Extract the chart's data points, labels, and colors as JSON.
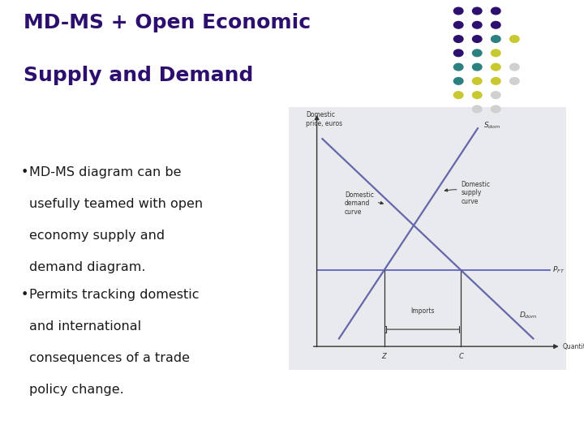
{
  "title_line1": "MD-MS + Open Economic",
  "title_line2": "Supply and Demand",
  "title_color": "#2d0f6e",
  "bullet1_line1": "MD-MS diagram can be",
  "bullet1_line2": "usefully teamed with open",
  "bullet1_line3": "economy supply and",
  "bullet1_line4": "demand diagram.",
  "bullet2_line1": "Permits tracking domestic",
  "bullet2_line2": "and international",
  "bullet2_line3": "consequences of a trade",
  "bullet2_line4": "policy change.",
  "bullet_color": "#1a1a1a",
  "bg_color": "#ffffff",
  "diagram_bg": "#e8eaee",
  "curve_color": "#6666aa",
  "axis_color": "#333333",
  "pft_line_color": "#5555bb",
  "dot_pattern": [
    [
      "#2d0f6e",
      "#2d0f6e",
      "#2d0f6e",
      null
    ],
    [
      "#2d0f6e",
      "#2d0f6e",
      "#2d0f6e",
      null
    ],
    [
      "#2d0f6e",
      "#2d0f6e",
      "#2d8080",
      "#c8c830"
    ],
    [
      "#2d0f6e",
      "#2d8080",
      "#c8c830",
      null
    ],
    [
      "#2d8080",
      "#2d8080",
      "#c8c830",
      "#d0d0d0"
    ],
    [
      "#2d8080",
      "#c8c830",
      "#c8c830",
      "#d0d0d0"
    ],
    [
      "#c8c830",
      "#c8c830",
      "#d0d0d0",
      null
    ],
    [
      null,
      "#d0d0d0",
      "#d0d0d0",
      null
    ]
  ]
}
